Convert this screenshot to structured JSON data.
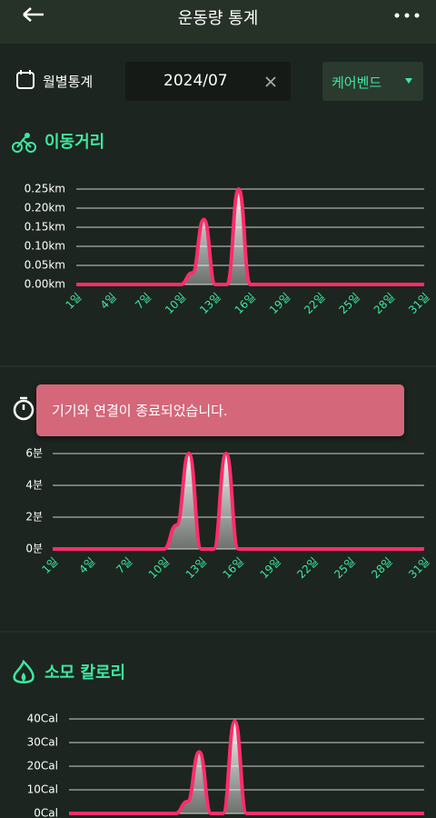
{
  "header": {
    "title": "운동량 통계"
  },
  "filter": {
    "label": "월별통계",
    "date": "2024/07",
    "device": "케어벤드"
  },
  "toast": {
    "text": "기기와 연결이 종료되었습니다."
  },
  "chart_data": [
    {
      "type": "line",
      "title": "이동거리",
      "color": "#ff2d6b",
      "categories": [
        "1일",
        null,
        null,
        "4일",
        null,
        null,
        "7일",
        null,
        null,
        "10일",
        null,
        null,
        "13일",
        null,
        null,
        "16일",
        null,
        null,
        "19일",
        null,
        null,
        "22일",
        null,
        null,
        "25일",
        null,
        null,
        "28일",
        null,
        null,
        "31일"
      ],
      "values": [
        0,
        0,
        0,
        0,
        0,
        0,
        0,
        0,
        0,
        0,
        0.03,
        0.17,
        0,
        0,
        0.25,
        0,
        0,
        0,
        0,
        0,
        0,
        0,
        0,
        0,
        0,
        0,
        0,
        0,
        0,
        0,
        0
      ],
      "ylim": [
        0,
        0.25
      ],
      "yticks": [
        {
          "value": 0,
          "label": "0.00km"
        },
        {
          "value": 0.05,
          "label": "0.05km"
        },
        {
          "value": 0.1,
          "label": "0.10km"
        },
        {
          "value": 0.15,
          "label": "0.15km"
        },
        {
          "value": 0.2,
          "label": "0.20km"
        },
        {
          "value": 0.25,
          "label": "0.25km"
        }
      ],
      "grid": true
    },
    {
      "type": "line",
      "color": "#ff2d6b",
      "categories": [
        "1일",
        null,
        null,
        "4일",
        null,
        null,
        "7일",
        null,
        null,
        "10일",
        null,
        null,
        "13일",
        null,
        null,
        "16일",
        null,
        null,
        "19일",
        null,
        null,
        "22일",
        null,
        null,
        "25일",
        null,
        null,
        "28일",
        null,
        null,
        "31일"
      ],
      "values": [
        0,
        0,
        0,
        0,
        0,
        0,
        0,
        0,
        0,
        0,
        1.5,
        6,
        0,
        0,
        6,
        0,
        0,
        0,
        0,
        0,
        0,
        0,
        0,
        0,
        0,
        0,
        0,
        0,
        0,
        0,
        0
      ],
      "ylim": [
        0,
        6
      ],
      "yticks": [
        {
          "value": 0,
          "label": "0분"
        },
        {
          "value": 2,
          "label": "2분"
        },
        {
          "value": 4,
          "label": "4분"
        },
        {
          "value": 6,
          "label": "6분"
        }
      ],
      "grid": true
    },
    {
      "type": "line",
      "title": "소모 칼로리",
      "color": "#ff2d6b",
      "categories": [
        null,
        null,
        null,
        null,
        null,
        null,
        null,
        null,
        null,
        null,
        null,
        null,
        null,
        null,
        null,
        null,
        null,
        null,
        null,
        null,
        null,
        null,
        null,
        null,
        null,
        null,
        null,
        null,
        null,
        null,
        null
      ],
      "values": [
        0,
        0,
        0,
        0,
        0,
        0,
        0,
        0,
        0,
        0,
        5,
        26,
        0,
        0,
        39,
        0,
        0,
        0,
        0,
        0,
        0,
        0,
        0,
        0,
        0,
        0,
        0,
        0,
        0,
        0,
        0
      ],
      "ylim": [
        0,
        40
      ],
      "yticks": [
        {
          "value": 0,
          "label": "0Cal"
        },
        {
          "value": 10,
          "label": "10Cal"
        },
        {
          "value": 20,
          "label": "20Cal"
        },
        {
          "value": 30,
          "label": "30Cal"
        },
        {
          "value": 40,
          "label": "40Cal"
        }
      ],
      "grid": true
    }
  ]
}
